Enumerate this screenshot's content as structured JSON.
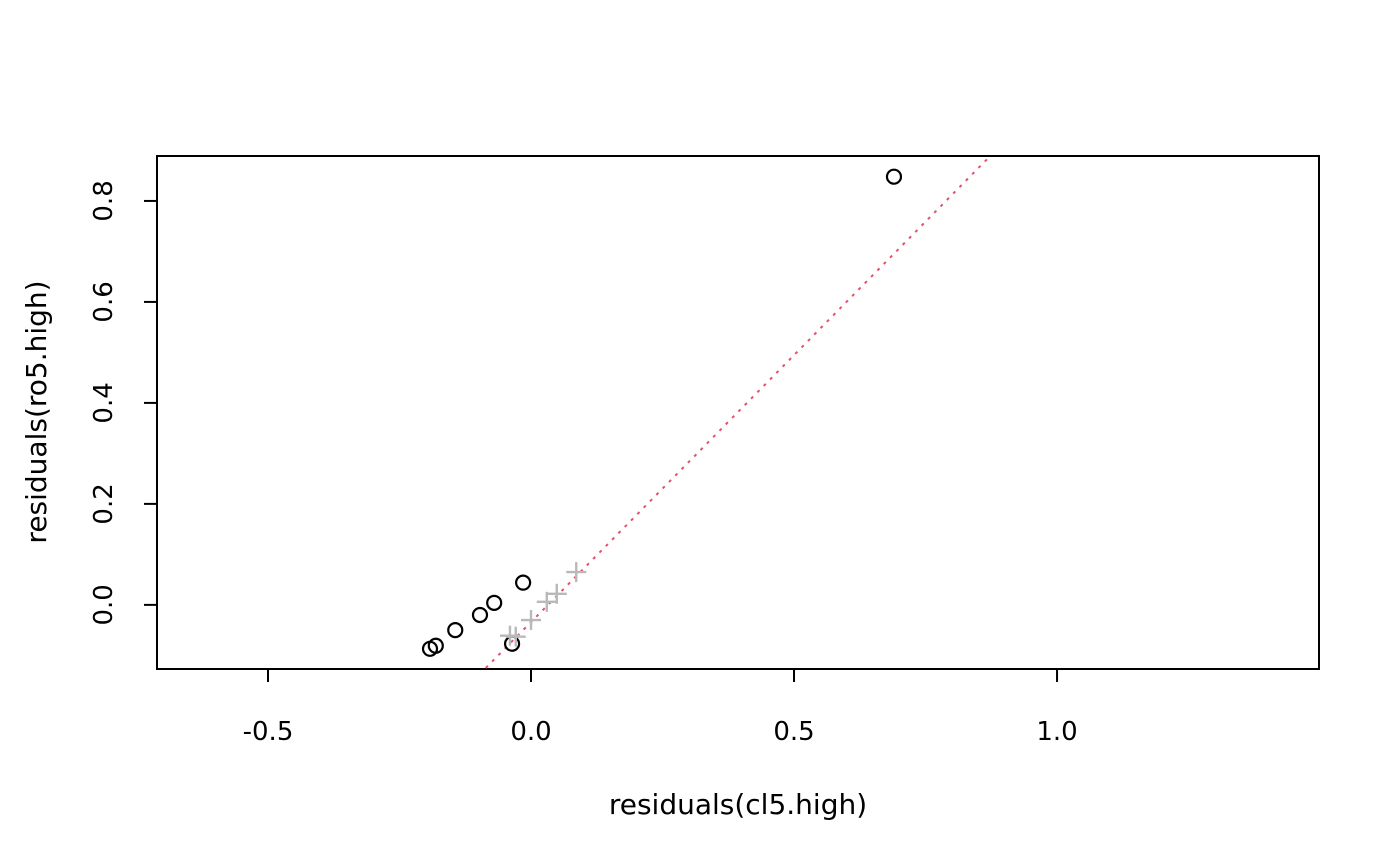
{
  "figure": {
    "background": "#ffffff"
  },
  "chart_data": {
    "type": "scatter",
    "title": "",
    "xlabel": "residuals(cl5.high)",
    "ylabel": "residuals(ro5.high)",
    "xlim": [
      -0.711,
      1.498
    ],
    "ylim": [
      -0.127,
      0.889
    ],
    "x_ticks": [
      -0.5,
      0.0,
      0.5,
      1.0
    ],
    "x_tick_labels": [
      "-0.5",
      "0.0",
      "0.5",
      "1.0"
    ],
    "y_ticks": [
      0.0,
      0.2,
      0.4,
      0.6,
      0.8
    ],
    "y_tick_labels": [
      "0.0",
      "0.2",
      "0.4",
      "0.6",
      "0.8"
    ],
    "grid": false,
    "legend": null,
    "colors": {
      "circle_series": "#000000",
      "plus_series": "#b9b9b9",
      "reference_line": "#df536b",
      "axis": "#000000",
      "background": "#ffffff"
    },
    "series": [
      {
        "name": "circle-points",
        "marker": "circle",
        "color": "#000000",
        "points": [
          [
            -0.192,
            -0.087
          ],
          [
            -0.181,
            -0.081
          ],
          [
            -0.144,
            -0.05
          ],
          [
            -0.097,
            -0.02
          ],
          [
            -0.07,
            0.004
          ],
          [
            -0.036,
            -0.077
          ],
          [
            -0.015,
            0.044
          ],
          [
            0.69,
            0.848
          ]
        ]
      },
      {
        "name": "plus-points",
        "marker": "plus",
        "color": "#b9b9b9",
        "points": [
          [
            -0.04,
            -0.061
          ],
          [
            -0.029,
            -0.063
          ],
          [
            0.0,
            -0.03
          ],
          [
            0.03,
            0.006
          ],
          [
            0.049,
            0.022
          ],
          [
            0.086,
            0.065
          ]
        ]
      }
    ],
    "reference_line": {
      "style": "dotted",
      "color": "#df536b",
      "from": [
        -0.086,
        -0.125
      ],
      "to": [
        0.873,
        0.889
      ]
    }
  }
}
